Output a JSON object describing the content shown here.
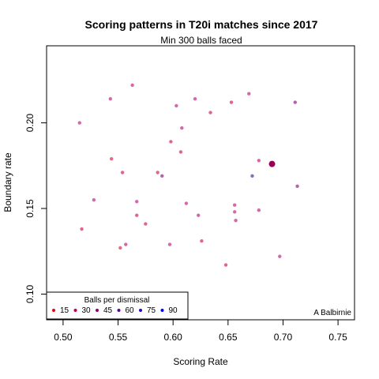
{
  "chart_data": {
    "type": "scatter",
    "title": "Scoring patterns in T20i matches since 2017",
    "subtitle": "Min 300 balls faced",
    "xlabel": "Scoring Rate",
    "ylabel": "Boundary rate",
    "xlim": [
      0.485,
      0.765
    ],
    "ylim": [
      0.085,
      0.245
    ],
    "xticks": [
      {
        "value": 0.5,
        "label": "0.50"
      },
      {
        "value": 0.55,
        "label": "0.55"
      },
      {
        "value": 0.6,
        "label": "0.60"
      },
      {
        "value": 0.65,
        "label": "0.65"
      },
      {
        "value": 0.7,
        "label": "0.70"
      },
      {
        "value": 0.75,
        "label": "0.75"
      }
    ],
    "yticks": [
      {
        "value": 0.1,
        "label": "0.10"
      },
      {
        "value": 0.15,
        "label": "0.15"
      },
      {
        "value": 0.2,
        "label": "0.20"
      }
    ],
    "grid": false,
    "legend": {
      "title": "Balls per dismissal",
      "placement": "bottom-left",
      "entries": [
        {
          "label": "15",
          "color": "#ee0011"
        },
        {
          "label": "30",
          "color": "#b8005a"
        },
        {
          "label": "45",
          "color": "#880077"
        },
        {
          "label": "60",
          "color": "#5a00a6"
        },
        {
          "label": "75",
          "color": "#2c00cc"
        },
        {
          "label": "90",
          "color": "#0000ff"
        }
      ]
    },
    "series": [
      {
        "points": [
          {
            "x": 0.515,
            "y": 0.2,
            "color": "#c8509c"
          },
          {
            "x": 0.517,
            "y": 0.138,
            "color": "#dd4a76"
          },
          {
            "x": 0.528,
            "y": 0.155,
            "color": "#c8509c"
          },
          {
            "x": 0.543,
            "y": 0.214,
            "color": "#c8509c"
          },
          {
            "x": 0.544,
            "y": 0.179,
            "color": "#e0506e"
          },
          {
            "x": 0.552,
            "y": 0.127,
            "color": "#e0506e"
          },
          {
            "x": 0.554,
            "y": 0.171,
            "color": "#dd4a76"
          },
          {
            "x": 0.557,
            "y": 0.129,
            "color": "#c8509c"
          },
          {
            "x": 0.563,
            "y": 0.222,
            "color": "#c8509c"
          },
          {
            "x": 0.567,
            "y": 0.154,
            "color": "#c8509c"
          },
          {
            "x": 0.567,
            "y": 0.146,
            "color": "#dd4a76"
          },
          {
            "x": 0.575,
            "y": 0.141,
            "color": "#dd4a76"
          },
          {
            "x": 0.586,
            "y": 0.171,
            "color": "#dd4a76"
          },
          {
            "x": 0.59,
            "y": 0.169,
            "color": "#a8489f"
          },
          {
            "x": 0.597,
            "y": 0.129,
            "color": "#c8509c"
          },
          {
            "x": 0.598,
            "y": 0.189,
            "color": "#dd4a76"
          },
          {
            "x": 0.603,
            "y": 0.21,
            "color": "#c8509c"
          },
          {
            "x": 0.607,
            "y": 0.183,
            "color": "#dd4a76"
          },
          {
            "x": 0.608,
            "y": 0.197,
            "color": "#c8509c"
          },
          {
            "x": 0.612,
            "y": 0.153,
            "color": "#c8509c"
          },
          {
            "x": 0.62,
            "y": 0.214,
            "color": "#c8509c"
          },
          {
            "x": 0.623,
            "y": 0.146,
            "color": "#c8509c"
          },
          {
            "x": 0.626,
            "y": 0.131,
            "color": "#dd4a76"
          },
          {
            "x": 0.634,
            "y": 0.206,
            "color": "#dd4a76"
          },
          {
            "x": 0.648,
            "y": 0.117,
            "color": "#dd4a76"
          },
          {
            "x": 0.653,
            "y": 0.212,
            "color": "#dd4a76"
          },
          {
            "x": 0.656,
            "y": 0.152,
            "color": "#c8509c"
          },
          {
            "x": 0.656,
            "y": 0.148,
            "color": "#c8509c"
          },
          {
            "x": 0.657,
            "y": 0.143,
            "color": "#c8509c"
          },
          {
            "x": 0.669,
            "y": 0.217,
            "color": "#c8509c"
          },
          {
            "x": 0.672,
            "y": 0.169,
            "color": "#7e4ab8"
          },
          {
            "x": 0.678,
            "y": 0.178,
            "color": "#c8509c"
          },
          {
            "x": 0.678,
            "y": 0.149,
            "color": "#c8509c"
          },
          {
            "x": 0.69,
            "y": 0.176,
            "color": "#990055"
          },
          {
            "x": 0.697,
            "y": 0.122,
            "color": "#c8509c"
          },
          {
            "x": 0.711,
            "y": 0.212,
            "color": "#a8489f"
          },
          {
            "x": 0.713,
            "y": 0.163,
            "color": "#a8489f"
          }
        ]
      }
    ],
    "highlight": {
      "x": 0.69,
      "y": 0.176,
      "color": "#990055"
    },
    "annotation": "A Balbirnie"
  }
}
